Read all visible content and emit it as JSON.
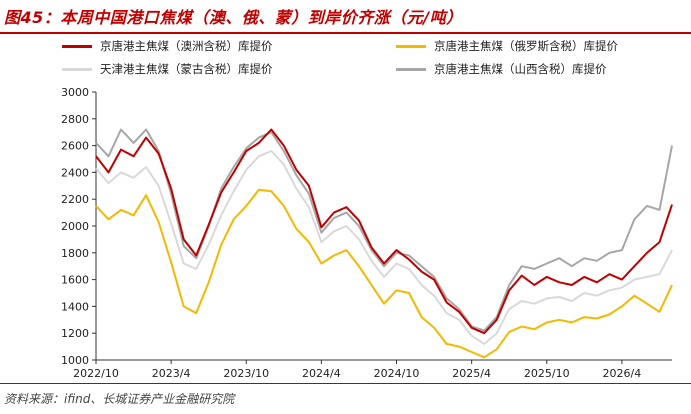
{
  "header": {
    "title": "图45：本周中国港口焦煤（澳、俄、蒙）到岸价齐涨（元/吨）"
  },
  "footer": {
    "source": "资料来源：ifind、长城证券产业金融研究院"
  },
  "chart_data": {
    "type": "line",
    "title": "图45：本周中国港口焦煤（澳、俄、蒙）到岸价齐涨（元/吨）",
    "xlabel": "",
    "ylabel": "",
    "xlim": [
      "2022-10",
      "2026-08"
    ],
    "ylim": [
      1000,
      3000
    ],
    "yticks": [
      "1000",
      "1200",
      "1400",
      "1600",
      "1800",
      "2000",
      "2200",
      "2400",
      "2600",
      "2800",
      "3000"
    ],
    "xticks": [
      {
        "label": "2022/10",
        "date": "2022-10"
      },
      {
        "label": "2023/4",
        "date": "2023-04"
      },
      {
        "label": "2023/10",
        "date": "2023-10"
      },
      {
        "label": "2024/4",
        "date": "2024-04"
      },
      {
        "label": "2024/10",
        "date": "2024-10"
      },
      {
        "label": "2025/4",
        "date": "2025-04"
      },
      {
        "label": "2025/10",
        "date": "2025-10"
      },
      {
        "label": "2026/4",
        "date": "2026-04"
      }
    ],
    "grid": false,
    "legend_position": "top",
    "series": [
      {
        "name": "京唐港主焦煤（澳洲含税）库提价",
        "color": "#c00000",
        "points": [
          [
            "2022-10",
            2520
          ],
          [
            "2022-11",
            2400
          ],
          [
            "2022-12",
            2570
          ],
          [
            "2023-01",
            2520
          ],
          [
            "2023-02",
            2660
          ],
          [
            "2023-03",
            2540
          ],
          [
            "2023-04",
            2280
          ],
          [
            "2023-05",
            1900
          ],
          [
            "2023-06",
            1780
          ],
          [
            "2023-07",
            2010
          ],
          [
            "2023-08",
            2250
          ],
          [
            "2023-09",
            2400
          ],
          [
            "2023-10",
            2560
          ],
          [
            "2023-11",
            2620
          ],
          [
            "2023-12",
            2720
          ],
          [
            "2024-01",
            2600
          ],
          [
            "2024-02",
            2420
          ],
          [
            "2024-03",
            2300
          ],
          [
            "2024-04",
            1990
          ],
          [
            "2024-05",
            2100
          ],
          [
            "2024-06",
            2140
          ],
          [
            "2024-07",
            2040
          ],
          [
            "2024-08",
            1840
          ],
          [
            "2024-09",
            1720
          ],
          [
            "2024-10",
            1820
          ],
          [
            "2024-11",
            1750
          ],
          [
            "2024-12",
            1660
          ],
          [
            "2025-01",
            1600
          ],
          [
            "2025-02",
            1430
          ],
          [
            "2025-03",
            1360
          ],
          [
            "2025-04",
            1240
          ],
          [
            "2025-05",
            1200
          ],
          [
            "2025-06",
            1300
          ],
          [
            "2025-07",
            1520
          ],
          [
            "2025-08",
            1630
          ],
          [
            "2025-09",
            1560
          ],
          [
            "2025-10",
            1620
          ],
          [
            "2025-11",
            1580
          ],
          [
            "2025-12",
            1560
          ],
          [
            "2026-01",
            1620
          ],
          [
            "2026-02",
            1580
          ],
          [
            "2026-03",
            1640
          ],
          [
            "2026-04",
            1600
          ],
          [
            "2026-05",
            1700
          ],
          [
            "2026-06",
            1800
          ],
          [
            "2026-07",
            1880
          ],
          [
            "2026-08",
            2160
          ]
        ]
      },
      {
        "name": "京唐港主焦煤（俄罗斯含税）库提价",
        "color": "#f5b800",
        "points": [
          [
            "2022-10",
            2150
          ],
          [
            "2022-11",
            2050
          ],
          [
            "2022-12",
            2120
          ],
          [
            "2023-01",
            2080
          ],
          [
            "2023-02",
            2230
          ],
          [
            "2023-03",
            2030
          ],
          [
            "2023-04",
            1730
          ],
          [
            "2023-05",
            1400
          ],
          [
            "2023-06",
            1350
          ],
          [
            "2023-07",
            1580
          ],
          [
            "2023-08",
            1860
          ],
          [
            "2023-09",
            2050
          ],
          [
            "2023-10",
            2150
          ],
          [
            "2023-11",
            2270
          ],
          [
            "2023-12",
            2260
          ],
          [
            "2024-01",
            2150
          ],
          [
            "2024-02",
            1980
          ],
          [
            "2024-03",
            1880
          ],
          [
            "2024-04",
            1720
          ],
          [
            "2024-05",
            1780
          ],
          [
            "2024-06",
            1820
          ],
          [
            "2024-07",
            1700
          ],
          [
            "2024-08",
            1560
          ],
          [
            "2024-09",
            1420
          ],
          [
            "2024-10",
            1520
          ],
          [
            "2024-11",
            1500
          ],
          [
            "2024-12",
            1320
          ],
          [
            "2025-01",
            1240
          ],
          [
            "2025-02",
            1120
          ],
          [
            "2025-03",
            1100
          ],
          [
            "2025-04",
            1060
          ],
          [
            "2025-05",
            1020
          ],
          [
            "2025-06",
            1080
          ],
          [
            "2025-07",
            1210
          ],
          [
            "2025-08",
            1250
          ],
          [
            "2025-09",
            1230
          ],
          [
            "2025-10",
            1280
          ],
          [
            "2025-11",
            1300
          ],
          [
            "2025-12",
            1280
          ],
          [
            "2026-01",
            1320
          ],
          [
            "2026-02",
            1310
          ],
          [
            "2026-03",
            1340
          ],
          [
            "2026-04",
            1400
          ],
          [
            "2026-05",
            1480
          ],
          [
            "2026-06",
            1420
          ],
          [
            "2026-07",
            1360
          ],
          [
            "2026-08",
            1560
          ]
        ]
      },
      {
        "name": "天津港主焦煤（蒙古含税）库提价",
        "color": "#d9d9d9",
        "points": [
          [
            "2022-10",
            2430
          ],
          [
            "2022-11",
            2320
          ],
          [
            "2022-12",
            2400
          ],
          [
            "2023-01",
            2360
          ],
          [
            "2023-02",
            2440
          ],
          [
            "2023-03",
            2300
          ],
          [
            "2023-04",
            2020
          ],
          [
            "2023-05",
            1720
          ],
          [
            "2023-06",
            1680
          ],
          [
            "2023-07",
            1860
          ],
          [
            "2023-08",
            2080
          ],
          [
            "2023-09",
            2260
          ],
          [
            "2023-10",
            2420
          ],
          [
            "2023-11",
            2520
          ],
          [
            "2023-12",
            2560
          ],
          [
            "2024-01",
            2460
          ],
          [
            "2024-02",
            2280
          ],
          [
            "2024-03",
            2140
          ],
          [
            "2024-04",
            1880
          ],
          [
            "2024-05",
            1960
          ],
          [
            "2024-06",
            2000
          ],
          [
            "2024-07",
            1900
          ],
          [
            "2024-08",
            1740
          ],
          [
            "2024-09",
            1620
          ],
          [
            "2024-10",
            1720
          ],
          [
            "2024-11",
            1680
          ],
          [
            "2024-12",
            1560
          ],
          [
            "2025-01",
            1480
          ],
          [
            "2025-02",
            1350
          ],
          [
            "2025-03",
            1300
          ],
          [
            "2025-04",
            1180
          ],
          [
            "2025-05",
            1120
          ],
          [
            "2025-06",
            1200
          ],
          [
            "2025-07",
            1380
          ],
          [
            "2025-08",
            1440
          ],
          [
            "2025-09",
            1420
          ],
          [
            "2025-10",
            1460
          ],
          [
            "2025-11",
            1470
          ],
          [
            "2025-12",
            1440
          ],
          [
            "2026-01",
            1500
          ],
          [
            "2026-02",
            1480
          ],
          [
            "2026-03",
            1520
          ],
          [
            "2026-04",
            1540
          ],
          [
            "2026-05",
            1600
          ],
          [
            "2026-06",
            1620
          ],
          [
            "2026-07",
            1640
          ],
          [
            "2026-08",
            1820
          ]
        ]
      },
      {
        "name": "京唐港主焦煤（山西含税）库提价",
        "color": "#a6a6a6",
        "points": [
          [
            "2022-10",
            2620
          ],
          [
            "2022-11",
            2520
          ],
          [
            "2022-12",
            2720
          ],
          [
            "2023-01",
            2620
          ],
          [
            "2023-02",
            2720
          ],
          [
            "2023-03",
            2560
          ],
          [
            "2023-04",
            2240
          ],
          [
            "2023-05",
            1850
          ],
          [
            "2023-06",
            1760
          ],
          [
            "2023-07",
            2000
          ],
          [
            "2023-08",
            2280
          ],
          [
            "2023-09",
            2440
          ],
          [
            "2023-10",
            2580
          ],
          [
            "2023-11",
            2660
          ],
          [
            "2023-12",
            2700
          ],
          [
            "2024-01",
            2560
          ],
          [
            "2024-02",
            2380
          ],
          [
            "2024-03",
            2240
          ],
          [
            "2024-04",
            1950
          ],
          [
            "2024-05",
            2060
          ],
          [
            "2024-06",
            2100
          ],
          [
            "2024-07",
            2000
          ],
          [
            "2024-08",
            1820
          ],
          [
            "2024-09",
            1700
          ],
          [
            "2024-10",
            1800
          ],
          [
            "2024-11",
            1780
          ],
          [
            "2024-12",
            1700
          ],
          [
            "2025-01",
            1620
          ],
          [
            "2025-02",
            1460
          ],
          [
            "2025-03",
            1380
          ],
          [
            "2025-04",
            1250
          ],
          [
            "2025-05",
            1220
          ],
          [
            "2025-06",
            1320
          ],
          [
            "2025-07",
            1560
          ],
          [
            "2025-08",
            1700
          ],
          [
            "2025-09",
            1680
          ],
          [
            "2025-10",
            1720
          ],
          [
            "2025-11",
            1760
          ],
          [
            "2025-12",
            1700
          ],
          [
            "2026-01",
            1760
          ],
          [
            "2026-02",
            1740
          ],
          [
            "2026-03",
            1800
          ],
          [
            "2026-04",
            1820
          ],
          [
            "2026-05",
            2050
          ],
          [
            "2026-06",
            2150
          ],
          [
            "2026-07",
            2120
          ],
          [
            "2026-08",
            2600
          ]
        ]
      }
    ]
  }
}
